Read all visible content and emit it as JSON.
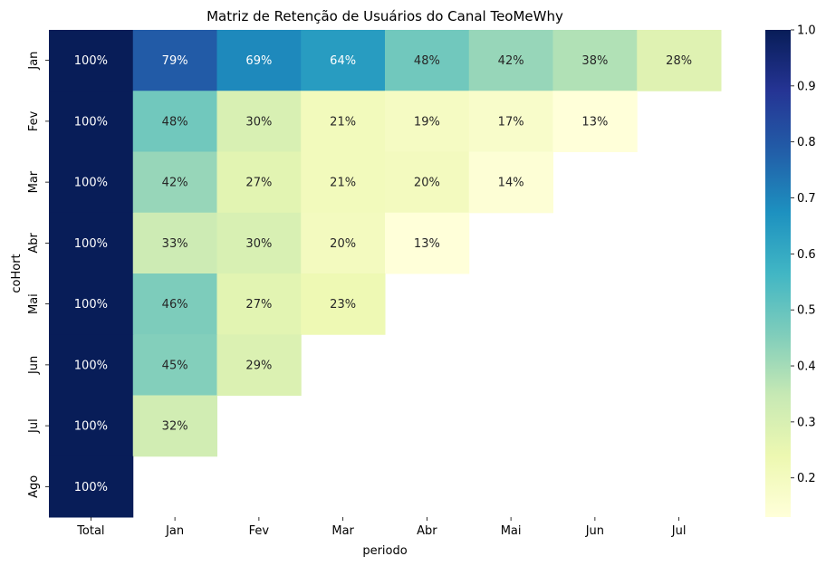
{
  "chart_data": {
    "type": "heatmap",
    "title": "Matriz de Retenção de Usuários do Canal TeoMeWhy",
    "xlabel": "periodo",
    "ylabel": "coHort",
    "columns": [
      "Total",
      "Jan",
      "Fev",
      "Mar",
      "Abr",
      "Mai",
      "Jun",
      "Jul"
    ],
    "rows": [
      "Jan",
      "Fev",
      "Mar",
      "Abr",
      "Mai",
      "Jun",
      "Jul",
      "Ago"
    ],
    "values": [
      [
        1.0,
        0.79,
        0.69,
        0.64,
        0.48,
        0.42,
        0.38,
        0.28
      ],
      [
        1.0,
        0.48,
        0.3,
        0.21,
        0.19,
        0.17,
        0.13,
        null
      ],
      [
        1.0,
        0.42,
        0.27,
        0.21,
        0.2,
        0.14,
        null,
        null
      ],
      [
        1.0,
        0.33,
        0.3,
        0.2,
        0.13,
        null,
        null,
        null
      ],
      [
        1.0,
        0.46,
        0.27,
        0.23,
        null,
        null,
        null,
        null
      ],
      [
        1.0,
        0.45,
        0.29,
        null,
        null,
        null,
        null,
        null
      ],
      [
        1.0,
        0.32,
        null,
        null,
        null,
        null,
        null,
        null
      ],
      [
        1.0,
        null,
        null,
        null,
        null,
        null,
        null,
        null
      ]
    ],
    "cell_labels": [
      [
        "100%",
        "79%",
        "69%",
        "64%",
        "48%",
        "42%",
        "38%",
        "28%"
      ],
      [
        "100%",
        "48%",
        "30%",
        "21%",
        "19%",
        "17%",
        "13%",
        ""
      ],
      [
        "100%",
        "42%",
        "27%",
        "21%",
        "20%",
        "14%",
        "",
        ""
      ],
      [
        "100%",
        "33%",
        "30%",
        "20%",
        "13%",
        "",
        "",
        ""
      ],
      [
        "100%",
        "46%",
        "27%",
        "23%",
        "",
        "",
        "",
        ""
      ],
      [
        "100%",
        "45%",
        "29%",
        "",
        "",
        "",
        "",
        ""
      ],
      [
        "100%",
        "32%",
        "",
        "",
        "",
        "",
        "",
        ""
      ],
      [
        "100%",
        "",
        "",
        "",
        "",
        "",
        "",
        ""
      ]
    ],
    "colormap": "YlGnBu",
    "vmin": 0.13,
    "vmax": 1.0,
    "colorbar_ticks": [
      "0.2",
      "0.3",
      "0.4",
      "0.5",
      "0.6",
      "0.7",
      "0.8",
      "0.9",
      "1.0"
    ],
    "grid": false,
    "legend": "colorbar-right"
  }
}
